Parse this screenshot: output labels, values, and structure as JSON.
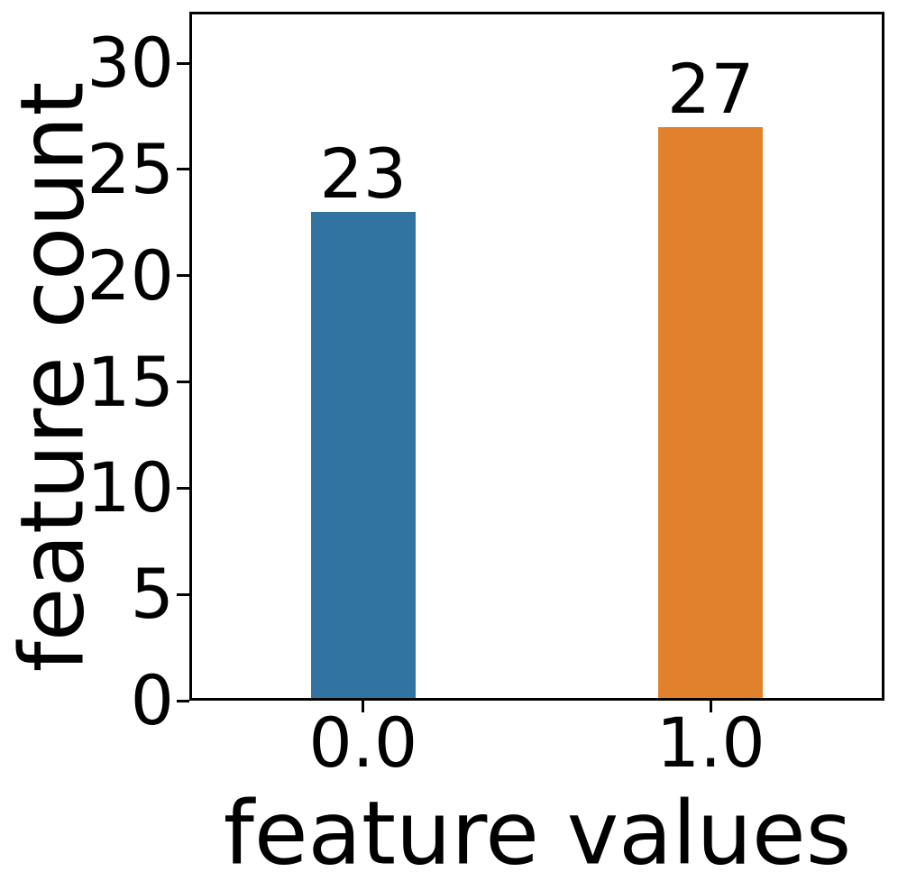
{
  "chart_data": {
    "type": "bar",
    "title": "",
    "xlabel": "feature values",
    "ylabel": "feature count",
    "categories": [
      "0.0",
      "1.0"
    ],
    "values": [
      23,
      27
    ],
    "bar_value_labels": [
      "23",
      "27"
    ],
    "bar_colors": [
      "#3274a1",
      "#e1812c"
    ],
    "y_ticks": [
      0,
      5,
      10,
      15,
      20,
      25,
      30
    ],
    "ylim": [
      0,
      32.42
    ],
    "grid": false,
    "legend": false,
    "axis_color": "#000000",
    "background_color": "#ffffff"
  }
}
